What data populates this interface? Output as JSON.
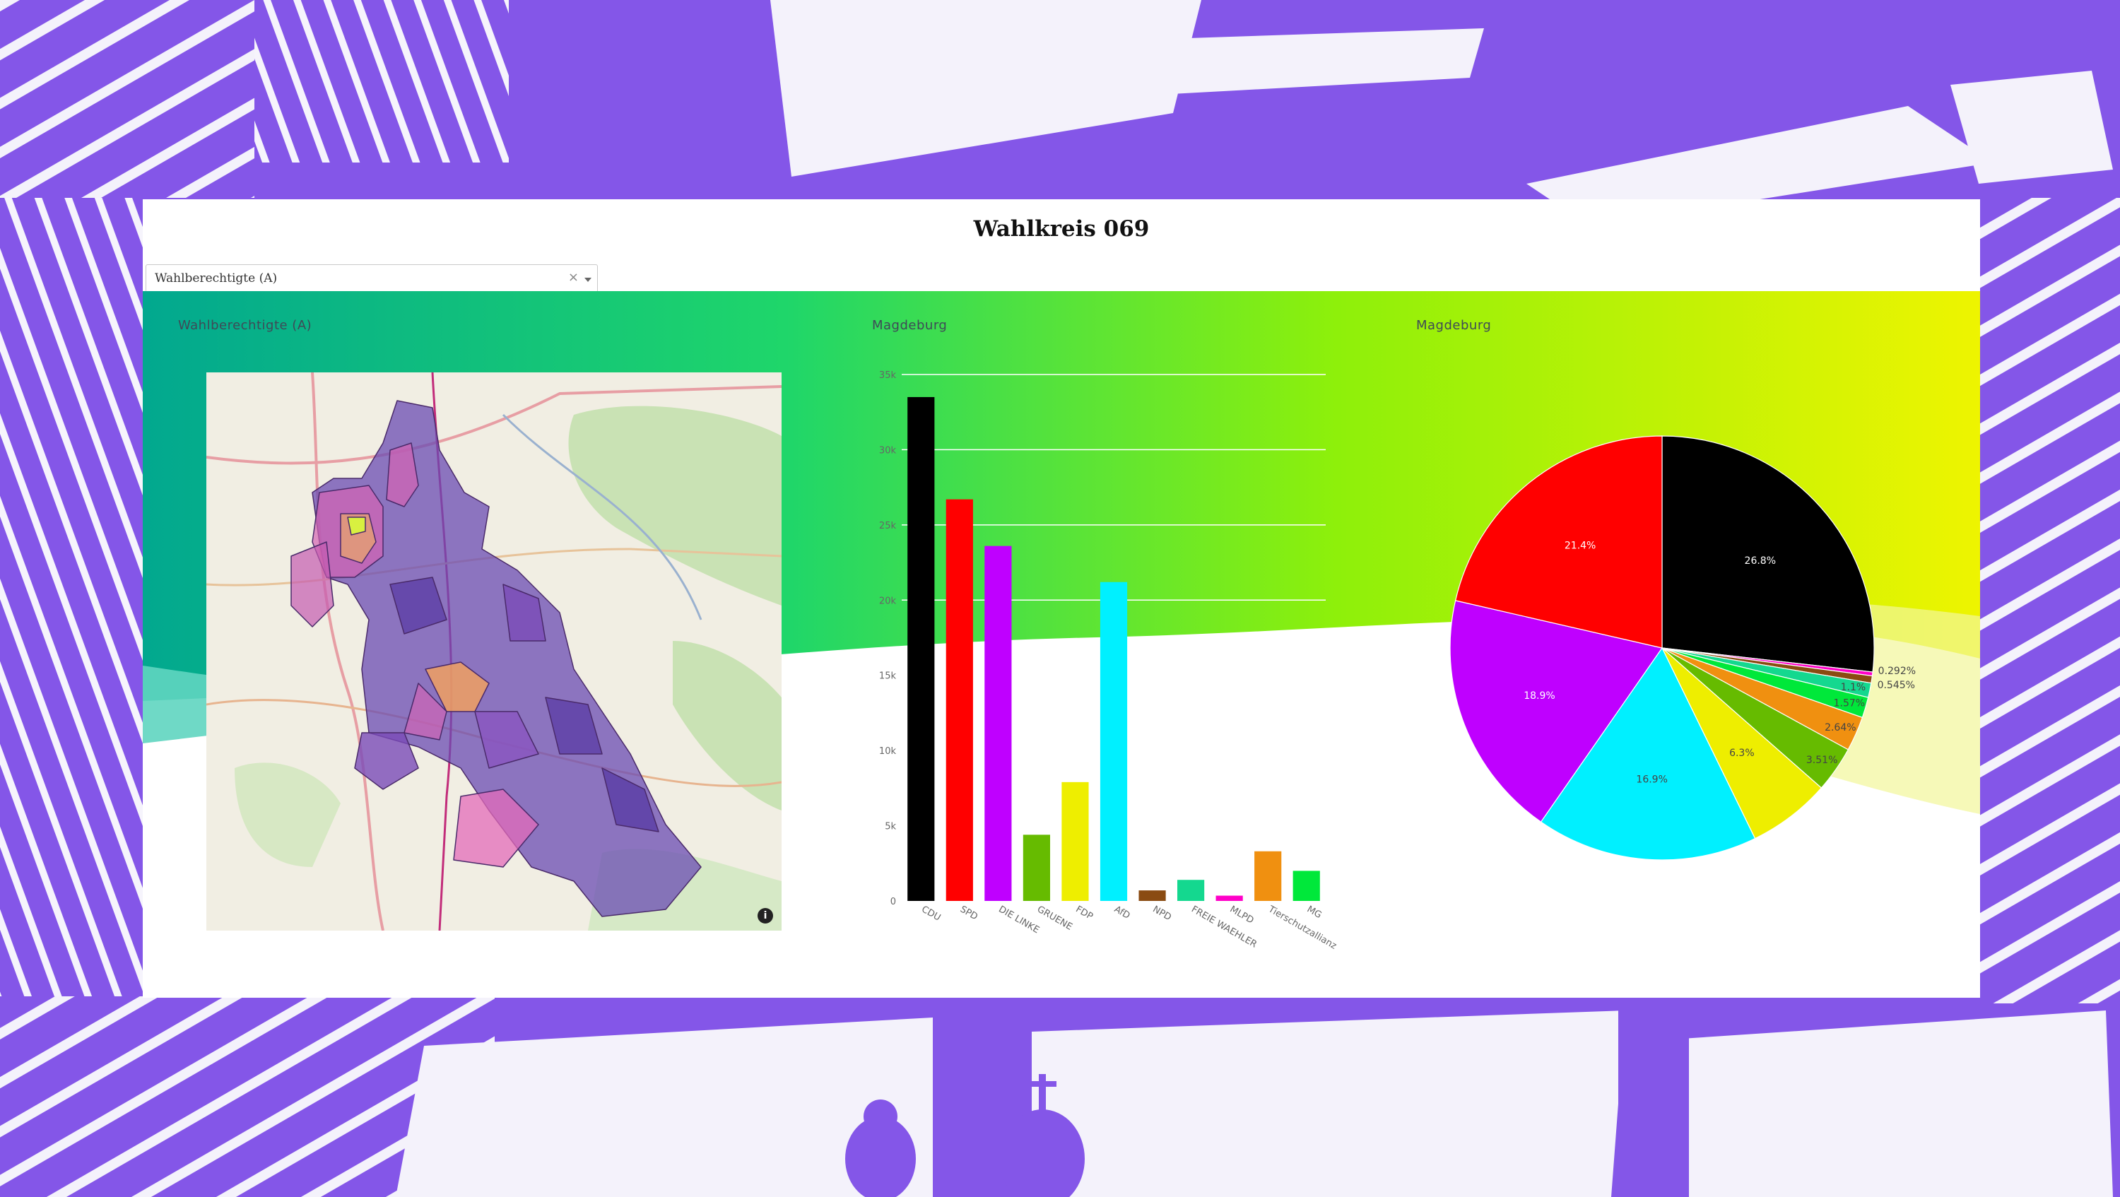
{
  "page": {
    "title": "Wahlkreis 069",
    "dropdown": {
      "value": "Wahlberechtigte (A)",
      "clear_glyph": "×"
    },
    "accent_colors": {
      "purple": "#8456e8",
      "teal": "#02a88f",
      "green": "#1fd66a",
      "lime": "#8ef00a",
      "yellow": "#eef400"
    }
  },
  "map": {
    "label": "Wahlberechtigte (A)",
    "info_glyph": "i"
  },
  "bar_label": "Magdeburg",
  "pie_label": "Magdeburg",
  "chart_data": [
    {
      "type": "bar",
      "title": "Magdeburg",
      "categories": [
        "CDU",
        "SPD",
        "DIE LINKE",
        "GRUENE",
        "FDP",
        "AfD",
        "NPD",
        "FREIE WAEHLER",
        "MLPD",
        "Tierschutzallianz",
        "MG"
      ],
      "values": [
        33500,
        26700,
        23600,
        4400,
        7900,
        21200,
        700,
        1400,
        350,
        3300,
        2000
      ],
      "colors": [
        "#000000",
        "#ff0000",
        "#bf00ff",
        "#66bb00",
        "#eeee00",
        "#00f0ff",
        "#8a4b12",
        "#14d88f",
        "#ff00c8",
        "#f09010",
        "#00e83a"
      ],
      "yticks": [
        {
          "v": 0,
          "label": "0"
        },
        {
          "v": 5000,
          "label": "5k"
        },
        {
          "v": 10000,
          "label": "10k"
        },
        {
          "v": 15000,
          "label": "15k"
        },
        {
          "v": 20000,
          "label": "20k"
        },
        {
          "v": 25000,
          "label": "25k"
        },
        {
          "v": 30000,
          "label": "30k"
        },
        {
          "v": 35000,
          "label": "35k"
        }
      ],
      "ylim": [
        0,
        35000
      ],
      "grid": true
    },
    {
      "type": "pie",
      "title": "Magdeburg",
      "slices": [
        {
          "name": "CDU",
          "value": 26.8,
          "label": "26.8%",
          "color": "#000000"
        },
        {
          "name": "MLPD",
          "value": 0.292,
          "label": "0.292%",
          "color": "#ff00c8"
        },
        {
          "name": "NPD",
          "value": 0.545,
          "label": "0.545%",
          "color": "#8a4b12"
        },
        {
          "name": "FREIE WAEHLER",
          "value": 1.1,
          "label": "1.1%",
          "color": "#14d88f"
        },
        {
          "name": "MG",
          "value": 1.57,
          "label": "1.57%",
          "color": "#00e83a"
        },
        {
          "name": "Tierschutzallianz",
          "value": 2.64,
          "label": "2.64%",
          "color": "#f09010"
        },
        {
          "name": "GRUENE",
          "value": 3.51,
          "label": "3.51%",
          "color": "#66bb00"
        },
        {
          "name": "FDP",
          "value": 6.3,
          "label": "6.3%",
          "color": "#eeee00"
        },
        {
          "name": "AfD",
          "value": 16.9,
          "label": "16.9%",
          "color": "#00f0ff"
        },
        {
          "name": "DIE LINKE",
          "value": 18.9,
          "label": "18.9%",
          "color": "#bf00ff"
        },
        {
          "name": "SPD",
          "value": 21.4,
          "label": "21.4%",
          "color": "#ff0000"
        }
      ]
    }
  ]
}
